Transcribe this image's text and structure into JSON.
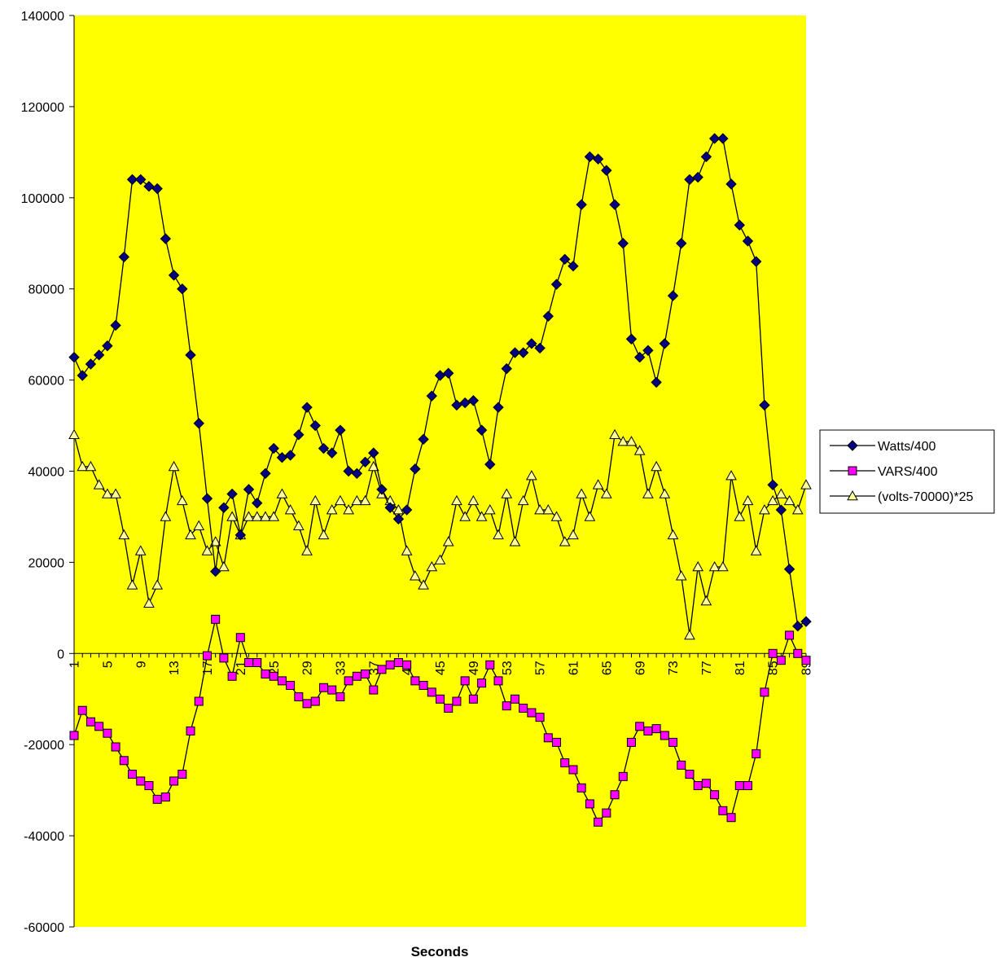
{
  "chart_data": {
    "type": "line",
    "title": "",
    "xlabel": "Seconds",
    "ylabel": "",
    "ylim": [
      -60000,
      140000
    ],
    "y_ticks": [
      "140000",
      "120000",
      "100000",
      "80000",
      "60000",
      "40000",
      "20000",
      "0",
      "-20000",
      "-40000",
      "-60000"
    ],
    "x_tick_labels": [
      "1",
      "5",
      "9",
      "13",
      "17",
      "21",
      "25",
      "29",
      "33",
      "37",
      "41",
      "45",
      "49",
      "53",
      "57",
      "61",
      "65",
      "69",
      "73",
      "77",
      "81",
      "85",
      "89"
    ],
    "background_color": "#ffff00",
    "grid": false,
    "legend_position": "right",
    "series": [
      {
        "name": "Watts/400",
        "color": "#000080",
        "marker": "diamond",
        "values": [
          65000,
          61000,
          63500,
          65500,
          67500,
          72000,
          87000,
          104000,
          104000,
          102500,
          102000,
          91000,
          83000,
          80000,
          65500,
          50500,
          34000,
          18000,
          32000,
          35000,
          26000,
          36000,
          33000,
          39500,
          45000,
          43000,
          43500,
          48000,
          54000,
          50000,
          45000,
          44000,
          49000,
          40000,
          39500,
          42000,
          44000,
          36000,
          32000,
          29500,
          31500,
          40500,
          47000,
          56500,
          61000,
          61500,
          54500,
          55000,
          55500,
          49000,
          41500,
          54000,
          62500,
          66000,
          66000,
          68000,
          67000,
          74000,
          81000,
          86500,
          85000,
          98500,
          109000,
          108500,
          106000,
          98500,
          90000,
          69000,
          65000,
          66500,
          59500,
          68000,
          78500,
          90000,
          104000,
          104500,
          109000,
          113000,
          113000,
          103000,
          94000,
          90500,
          86000,
          54500,
          37000,
          31500,
          18500,
          6000,
          7000
        ]
      },
      {
        "name": "VARS/400",
        "color": "#ff00ff",
        "marker": "square",
        "values": [
          -18000,
          -12500,
          -15000,
          -16000,
          -17500,
          -20500,
          -23500,
          -26500,
          -28000,
          -29000,
          -32000,
          -31500,
          -28000,
          -26500,
          -17000,
          -10500,
          -500,
          7500,
          -1000,
          -5000,
          3500,
          -2000,
          -2000,
          -4500,
          -5000,
          -6000,
          -7000,
          -9500,
          -11000,
          -10500,
          -7500,
          -8000,
          -9500,
          -6000,
          -5000,
          -4500,
          -8000,
          -3500,
          -2500,
          -2000,
          -2500,
          -6000,
          -7000,
          -8500,
          -10000,
          -12000,
          -10500,
          -6000,
          -10000,
          -6500,
          -2500,
          -6000,
          -11500,
          -10000,
          -12000,
          -13000,
          -14000,
          -18500,
          -19500,
          -24000,
          -25500,
          -29500,
          -33000,
          -37000,
          -35000,
          -31000,
          -27000,
          -19500,
          -16000,
          -17000,
          -16500,
          -18000,
          -19500,
          -24500,
          -26500,
          -29000,
          -28500,
          -31000,
          -34500,
          -36000,
          -29000,
          -29000,
          -22000,
          -8500,
          0,
          -1500,
          4000,
          0,
          -1500
        ]
      },
      {
        "name": "(volts-70000)*25",
        "color": "#ffff99",
        "marker": "triangle",
        "values": [
          48000,
          41000,
          41000,
          37000,
          35000,
          35000,
          26000,
          15000,
          22500,
          11000,
          15000,
          30000,
          41000,
          33500,
          26000,
          28000,
          22500,
          24500,
          19000,
          30000,
          26000,
          30000,
          30000,
          30000,
          30000,
          35000,
          31500,
          28000,
          22500,
          33500,
          26000,
          31500,
          33500,
          31500,
          33500,
          33500,
          41000,
          35000,
          33500,
          31500,
          22500,
          17000,
          15000,
          19000,
          20500,
          24500,
          33500,
          30000,
          33500,
          30000,
          31500,
          26000,
          35000,
          24500,
          33500,
          39000,
          31500,
          31500,
          30000,
          24500,
          26000,
          35000,
          30000,
          37000,
          35000,
          48000,
          46500,
          46500,
          44500,
          35000,
          41000,
          35000,
          26000,
          17000,
          4000,
          19000,
          11500,
          19000,
          19000,
          39000,
          30000,
          33500,
          22500,
          31500,
          33500,
          35000,
          33500,
          31500,
          37000
        ]
      }
    ]
  }
}
